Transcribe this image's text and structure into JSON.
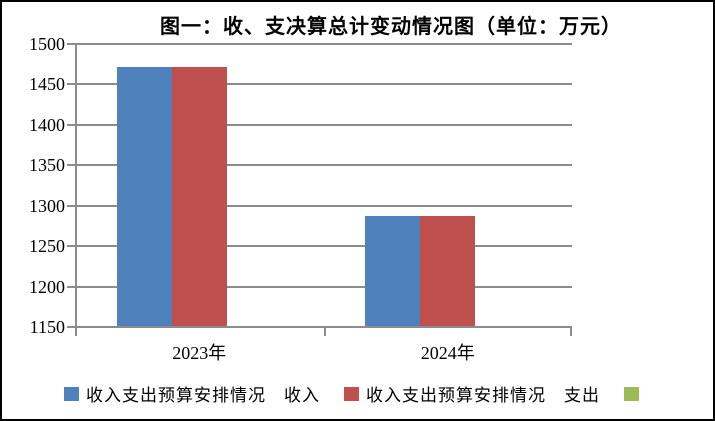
{
  "title": "图一：收、支决算总计变动情况图（单位：万元）",
  "chart_data": {
    "type": "bar",
    "title": "图一：收、支决算总计变动情况图（单位：万元）",
    "unit": "万元",
    "categories": [
      "2023年",
      "2024年"
    ],
    "series": [
      {
        "name": "收入支出预算安排情况　收入",
        "color": "#4F81BD",
        "values": [
          1470,
          1286
        ]
      },
      {
        "name": "收入支出预算安排情况　支出",
        "color": "#C0504D",
        "values": [
          1470,
          1286
        ]
      },
      {
        "name": "",
        "color": "#9BBB59",
        "values": [
          null,
          null
        ]
      }
    ],
    "ylim": [
      1150,
      1500
    ],
    "yticks": [
      1500,
      1450,
      1400,
      1350,
      1300,
      1250,
      1200,
      1150
    ],
    "grid": true,
    "legend_position": "bottom",
    "xlabel": "",
    "ylabel": ""
  },
  "colors": {
    "background": "#FFFFFF",
    "border": "#000000",
    "gridline": "#8C8C8C",
    "axis": "#8C8C8C",
    "text": "#000000"
  }
}
